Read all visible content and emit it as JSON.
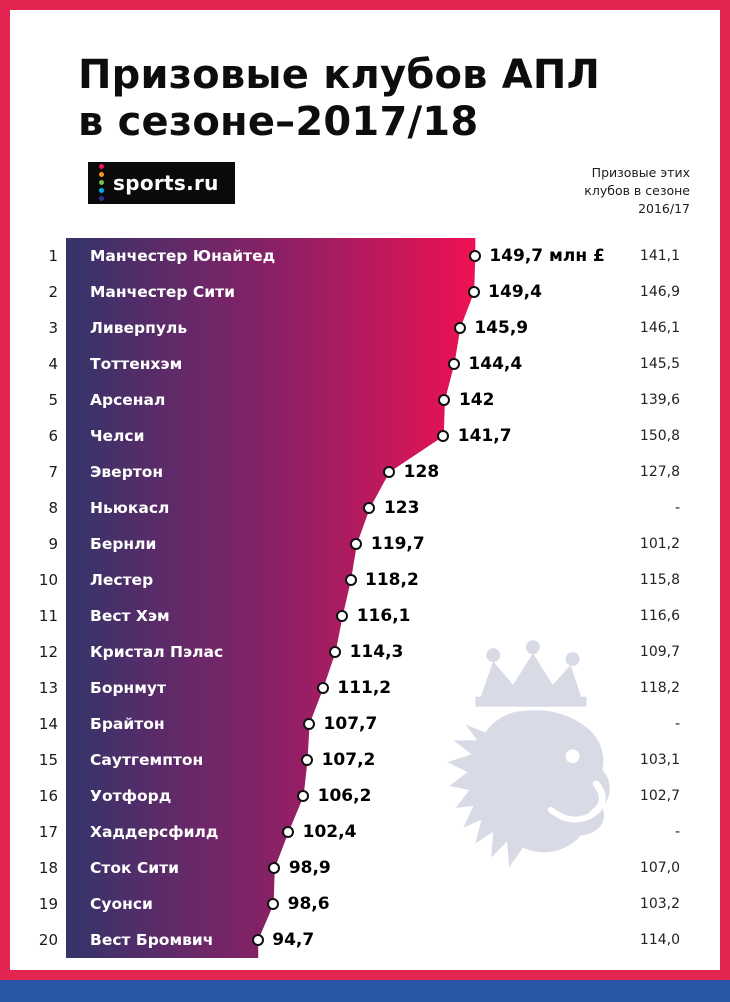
{
  "frame": {
    "border_color": "#e42451",
    "bottom_bar_color": "#2a57a5"
  },
  "header": {
    "title_line1": "Призовые клубов АПЛ",
    "title_line2": "в сезоне–2017/18",
    "logo_text": "sports.ru",
    "logo_dot_colors": [
      "#f0125f",
      "#f7941d",
      "#7dc242",
      "#00aeef",
      "#2e3192"
    ],
    "right_note_lines": [
      "Призовые этих",
      "клубов в сезоне",
      "2016/17"
    ]
  },
  "chart_data": {
    "type": "bar",
    "orientation": "horizontal",
    "title": "Призовые клубов АПЛ в сезоне–2017/18",
    "unit": "млн £",
    "ranks": [
      1,
      2,
      3,
      4,
      5,
      6,
      7,
      8,
      9,
      10,
      11,
      12,
      13,
      14,
      15,
      16,
      17,
      18,
      19,
      20
    ],
    "categories": [
      "Манчестер Юнайтед",
      "Манчестер Сити",
      "Ливерпуль",
      "Тоттенхэм",
      "Арсенал",
      "Челси",
      "Эвертон",
      "Ньюкасл",
      "Бернли",
      "Лестер",
      "Вест Хэм",
      "Кристал Пэлас",
      "Борнмут",
      "Брайтон",
      "Саутгемптон",
      "Уотфорд",
      "Хаддерсфилд",
      "Сток Сити",
      "Суонси",
      "Вест Бромвич"
    ],
    "values": [
      149.7,
      149.4,
      145.9,
      144.4,
      142,
      141.7,
      128,
      123,
      119.7,
      118.2,
      116.1,
      114.3,
      111.2,
      107.7,
      107.2,
      106.2,
      102.4,
      98.9,
      98.6,
      94.7
    ],
    "value_labels": [
      "149,7 млн £",
      "149,4",
      "145,9",
      "144,4",
      "142",
      "141,7",
      "128",
      "123",
      "119,7",
      "118,2",
      "116,1",
      "114,3",
      "111,2",
      "107,7",
      "107,2",
      "106,2",
      "102,4",
      "98,9",
      "98,6",
      "94,7"
    ],
    "prev_season_header": "Призовые этих клубов в сезоне 2016/17",
    "prev_season_values": [
      "141,1",
      "146,9",
      "146,1",
      "145,5",
      "139,6",
      "150,8",
      "127,8",
      "-",
      "101,2",
      "115,8",
      "116,6",
      "109,7",
      "118,2",
      "-",
      "103,1",
      "102,7",
      "-",
      "107,0",
      "103,2",
      "114,0"
    ],
    "xlim": [
      46,
      160
    ],
    "bar_gradient": [
      "#34346a",
      "#8c2066",
      "#f01152"
    ],
    "marker": "white-circle-black-outline",
    "grid": false,
    "legend": false,
    "watermark": "premier-league-lion"
  }
}
